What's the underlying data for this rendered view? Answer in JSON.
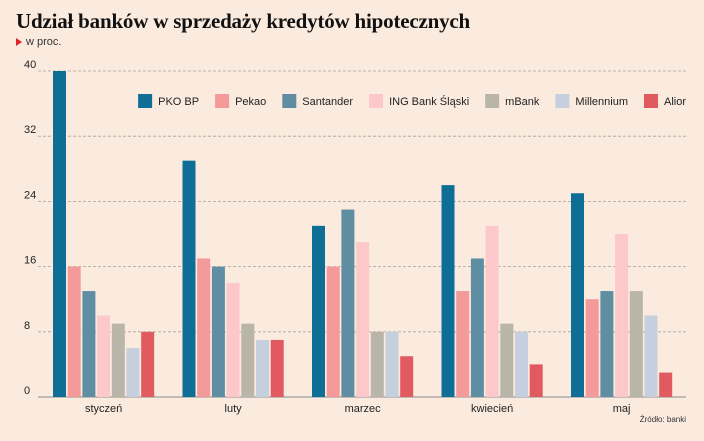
{
  "title": "Udział banków w sprzedaży kredytów hipotecznych",
  "subtitle": "w proc.",
  "source": "Źródło: banki",
  "chart_data": {
    "type": "bar",
    "categories": [
      "styczeń",
      "luty",
      "marzec",
      "kwiecień",
      "maj"
    ],
    "series": [
      {
        "name": "PKO BP",
        "color": "#0e6e96",
        "values": [
          40,
          29,
          21,
          26,
          25
        ]
      },
      {
        "name": "Pekao",
        "color": "#f59a9a",
        "values": [
          16,
          17,
          16,
          13,
          12
        ]
      },
      {
        "name": "Santander",
        "color": "#5f8ea3",
        "values": [
          13,
          16,
          23,
          17,
          13
        ]
      },
      {
        "name": "ING Bank Śląski",
        "color": "#fdc8c9",
        "values": [
          10,
          14,
          19,
          21,
          20
        ]
      },
      {
        "name": "mBank",
        "color": "#b9b6a9",
        "values": [
          9,
          9,
          8,
          9,
          13
        ]
      },
      {
        "name": "Millennium",
        "color": "#c5cfdd",
        "values": [
          6,
          7,
          8,
          8,
          10
        ]
      },
      {
        "name": "Alior",
        "color": "#e05a5f",
        "values": [
          8,
          7,
          5,
          4,
          3
        ]
      }
    ],
    "yticks": [
      0,
      8,
      16,
      24,
      32,
      40
    ],
    "ylim": [
      0,
      40
    ],
    "grid": true,
    "legend": "top-right"
  }
}
